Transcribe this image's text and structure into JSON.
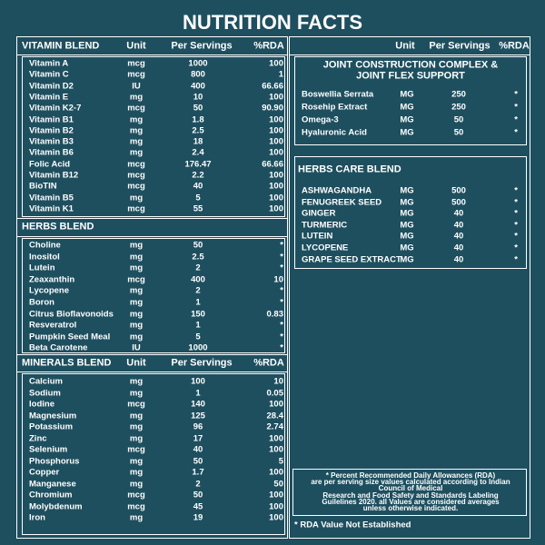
{
  "title": "NUTRITION FACTS",
  "vitamin": {
    "header": [
      "VITAMIN BLEND",
      "Unit",
      "Per Servings",
      "%RDA"
    ],
    "rows": [
      [
        "Vitamin A",
        "mcg",
        "1000",
        "100"
      ],
      [
        "Vitamin C",
        "mcg",
        "800",
        "1"
      ],
      [
        "Vitamin D2",
        "IU",
        "400",
        "66.66"
      ],
      [
        "Vitamin E",
        "mg",
        "10",
        "100"
      ],
      [
        "Vitamin K2-7",
        "mcg",
        "50",
        "90.90"
      ],
      [
        "Vitamin B1",
        "mg",
        "1.8",
        "100"
      ],
      [
        "Vitamin B2",
        "mg",
        "2.5",
        "100"
      ],
      [
        "Vitamin B3",
        "mg",
        "18",
        "100"
      ],
      [
        "Vitamin B6",
        "mg",
        "2.4",
        "100"
      ],
      [
        "Folic Acid",
        "mcg",
        "176.47",
        "66.66"
      ],
      [
        "Vitamin B12",
        "mcg",
        "2.2",
        "100"
      ],
      [
        "BioTIN",
        "mcg",
        "40",
        "100"
      ],
      [
        "Vitamin B5",
        "mg",
        "5",
        "100"
      ],
      [
        "Vitamin K1",
        "mcg",
        "55",
        "100"
      ]
    ]
  },
  "herbs": {
    "header": "HERBS BLEND",
    "rows": [
      [
        "Choline",
        "mg",
        "50",
        "*"
      ],
      [
        "Inositol",
        "mg",
        "2.5",
        "*"
      ],
      [
        "Lutein",
        "mg",
        "2",
        "*"
      ],
      [
        "Zeaxanthin",
        "mcg",
        "400",
        "10"
      ],
      [
        "Lycopene",
        "mg",
        "2",
        "*"
      ],
      [
        "Boron",
        "mg",
        "1",
        "*"
      ],
      [
        "Citrus Bioflavonoids",
        "mg",
        "150",
        "0.83"
      ],
      [
        "Resveratrol",
        "mg",
        "1",
        "*"
      ],
      [
        "Pumpkin Seed Meal",
        "mg",
        "5",
        "*"
      ],
      [
        "Beta Carotene",
        "IU",
        "1000",
        "*"
      ]
    ]
  },
  "minerals": {
    "header": [
      "MINERALS BLEND",
      "Unit",
      "Per Servings",
      "%RDA"
    ],
    "rows": [
      [
        "Calcium",
        "mg",
        "100",
        "10"
      ],
      [
        "Sodium",
        "mg",
        "1",
        "0.05"
      ],
      [
        "Iodine",
        "mcg",
        "140",
        "100"
      ],
      [
        "Magnesium",
        "mg",
        "125",
        "28.4"
      ],
      [
        "Potassium",
        "mg",
        "96",
        "2.74"
      ],
      [
        "Zinc",
        "mg",
        "17",
        "100"
      ],
      [
        "Selenium",
        "mcg",
        "40",
        "100"
      ],
      [
        "Phosphorus",
        "mg",
        "50",
        "5"
      ],
      [
        "Copper",
        "mg",
        "1.7",
        "100"
      ],
      [
        "Manganese",
        "mg",
        "2",
        "50"
      ],
      [
        "Chromium",
        "mcg",
        "50",
        "100"
      ],
      [
        "Molybdenum",
        "mcg",
        "45",
        "100"
      ],
      [
        "Iron",
        "mg",
        "19",
        "100"
      ]
    ]
  },
  "right_header": [
    "Unit",
    "Per Servings",
    "%RDA"
  ],
  "joint": {
    "title": [
      "JOINT CONSTRUCTION COMPLEX &",
      "JOINT FLEX SUPPORT"
    ],
    "rows": [
      [
        "Boswellia Serrata",
        "MG",
        "250",
        "*"
      ],
      [
        "Rosehip Extract",
        "MG",
        "250",
        "*"
      ],
      [
        "Omega-3",
        "MG",
        "50",
        "*"
      ],
      [
        "Hyaluronic Acid",
        "MG",
        "50",
        "*"
      ]
    ]
  },
  "herbs_care": {
    "header": "HERBS CARE BLEND",
    "rows": [
      [
        "ASHWAGANDHA",
        "MG",
        "500",
        "*"
      ],
      [
        "FENUGREEK SEED",
        "MG",
        "500",
        "*"
      ],
      [
        "GINGER",
        "MG",
        "40",
        "*"
      ],
      [
        "TURMERIC",
        "MG",
        "40",
        "*"
      ],
      [
        "LUTEIN",
        "MG",
        "40",
        "*"
      ],
      [
        "LYCOPENE",
        "MG",
        "40",
        "*"
      ],
      [
        "GRAPE SEED EXTRACT",
        "MG",
        "40",
        "*"
      ]
    ]
  },
  "footnote": [
    "* Percent Recommended Daily Allowances (RDA)",
    "are per serving size values calculated according to Indian",
    "Council of Medical",
    "Research and Food Safety and Standards Labeling",
    "Guilelines 2020. all Values are considered averages",
    "unless otherwise indicated."
  ],
  "rda_note": "* RDA Value Not Established"
}
